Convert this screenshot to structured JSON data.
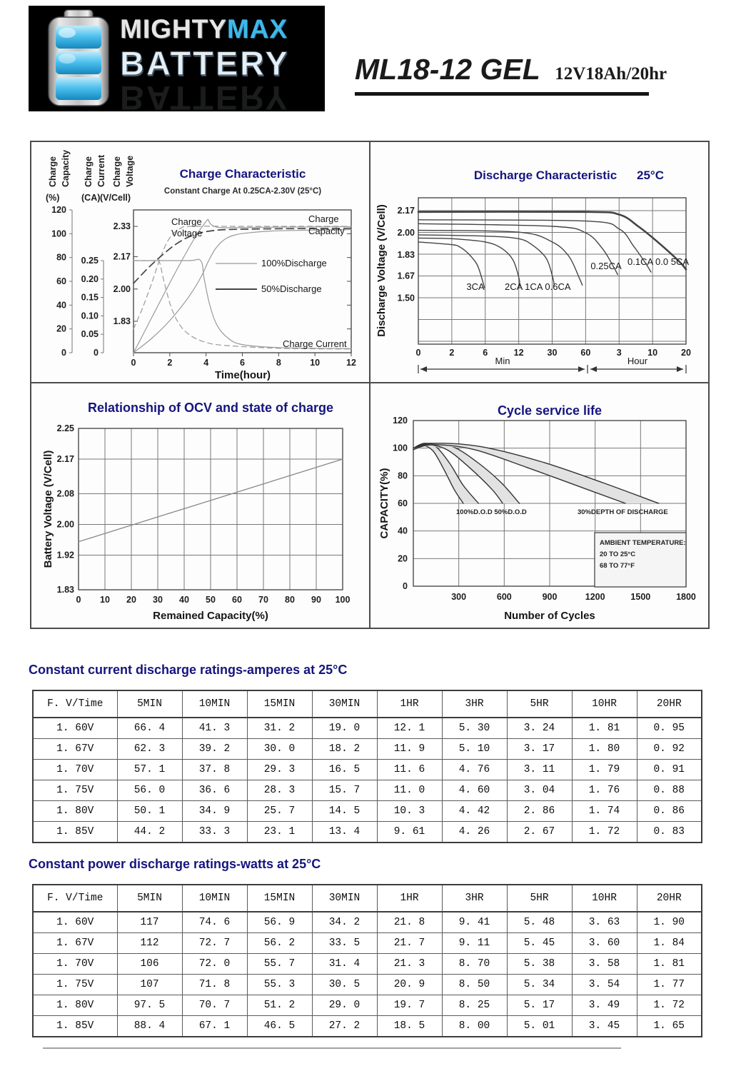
{
  "header": {
    "brand": {
      "part1": "MIGHTY",
      "part2": "MAX",
      "line2": "BATTERY"
    },
    "battery_icon": "battery-icon",
    "model": "ML18-12 GEL",
    "spec": "12V18Ah/20hr"
  },
  "colors": {
    "title_navy": "#15157e",
    "line_dark": "#444444",
    "line_light": "#9a9a9a",
    "grid": "#787878",
    "band_fill": "#e2e2e2",
    "logo_blue": "#41b7e9",
    "logo_bg": "#000000"
  },
  "chart_data": [
    {
      "id": "charge",
      "type": "line",
      "title": "Charge Characteristic",
      "subtitle": "Constant Charge At 0.25CA-2.30V (25°C)",
      "xlabel": "Time(hour)",
      "x_ticks": [
        "0",
        "2",
        "4",
        "6",
        "8",
        "10",
        "12"
      ],
      "xlim": [
        0,
        12
      ],
      "axes": [
        {
          "name": "capacity",
          "label_words": [
            "Charge",
            "Capacity"
          ],
          "unit": "(%)",
          "ticks": [
            "120",
            "100",
            "80",
            "60",
            "40",
            "20",
            "0"
          ],
          "tick_values": [
            120,
            100,
            80,
            60,
            40,
            20,
            0
          ]
        },
        {
          "name": "current",
          "label_words": [
            "Charge",
            "Current"
          ],
          "unit": "(CA)",
          "ticks": [
            "0.25",
            "0.20",
            "0.15",
            "0.10",
            "0.05",
            "0"
          ],
          "tick_values": [
            0.25,
            0.2,
            0.15,
            0.1,
            0.05,
            0
          ]
        },
        {
          "name": "voltage",
          "label_words": [
            "Charge",
            "Voltage"
          ],
          "unit": "(V/Cell)",
          "ticks": [
            "2.33",
            "2.17",
            "2.00",
            "1.83"
          ],
          "tick_values": [
            2.33,
            2.17,
            2.0,
            1.83
          ]
        }
      ],
      "legend": [
        {
          "label": "100%Discharge",
          "style": "light"
        },
        {
          "label": "50%Discharge",
          "style": "dark"
        }
      ],
      "annotations": {
        "voltage": [
          "Charge",
          "Voltage"
        ],
        "capacity": [
          "Charge",
          "Capacity"
        ],
        "current": "Charge Current"
      },
      "series": [
        {
          "name": "charge-voltage-100pct",
          "axis": "voltage",
          "style": "light-dash",
          "points": [
            [
              0,
              1.79
            ],
            [
              0.5,
              1.9
            ],
            [
              1.0,
              2.03
            ],
            [
              1.5,
              2.17
            ],
            [
              2.0,
              2.27
            ],
            [
              2.6,
              2.32
            ],
            [
              3.2,
              2.33
            ],
            [
              6,
              2.33
            ],
            [
              12,
              2.33
            ]
          ]
        },
        {
          "name": "charge-voltage-50pct",
          "axis": "voltage",
          "style": "dark-dash",
          "points": [
            [
              0,
              2.03
            ],
            [
              0.8,
              2.11
            ],
            [
              1.6,
              2.18
            ],
            [
              2.4,
              2.24
            ],
            [
              3.2,
              2.28
            ],
            [
              4.2,
              2.305
            ],
            [
              6,
              2.315
            ],
            [
              12,
              2.32
            ]
          ]
        },
        {
          "name": "charge-capacity-100pct",
          "axis": "capacity",
          "style": "light-solid",
          "points": [
            [
              0,
              0
            ],
            [
              1,
              12
            ],
            [
              2,
              27
            ],
            [
              3,
              46
            ],
            [
              3.7,
              63
            ],
            [
              4.1,
              76
            ],
            [
              4.5,
              87
            ],
            [
              5,
              95
            ],
            [
              5.6,
              99
            ],
            [
              6.5,
              101
            ],
            [
              8,
              102.5
            ],
            [
              12,
              103.5
            ]
          ]
        },
        {
          "name": "charge-capacity-50pct",
          "axis": "capacity",
          "style": "light-solid",
          "points": [
            [
              0,
              0
            ],
            [
              3.7,
              104
            ],
            [
              5,
              105
            ],
            [
              12,
              106
            ]
          ]
        },
        {
          "name": "charge-current-100pct",
          "axis": "current",
          "style": "light-solid",
          "points": [
            [
              0,
              0.25
            ],
            [
              3.0,
              0.25
            ],
            [
              3.7,
              0.25
            ],
            [
              3.9,
              0.2
            ],
            [
              4.2,
              0.13
            ],
            [
              4.6,
              0.075
            ],
            [
              5.2,
              0.04
            ],
            [
              6,
              0.022
            ],
            [
              8,
              0.014
            ],
            [
              12,
              0.011
            ]
          ]
        },
        {
          "name": "charge-current-50pct",
          "axis": "current",
          "style": "light-dash",
          "points": [
            [
              0,
              0.25
            ],
            [
              1.1,
              0.25
            ],
            [
              1.4,
              0.25
            ],
            [
              1.7,
              0.19
            ],
            [
              2.1,
              0.12
            ],
            [
              2.6,
              0.072
            ],
            [
              3.2,
              0.045
            ],
            [
              4,
              0.028
            ],
            [
              5,
              0.02
            ],
            [
              8,
              0.012
            ],
            [
              12,
              0.01
            ]
          ]
        }
      ]
    },
    {
      "id": "discharge",
      "type": "line",
      "title": "Discharge Characteristic",
      "temperature": "25°C",
      "ylabel": "Discharge Voltage (V/Cell)",
      "y_ticks": [
        "2.17",
        "2.00",
        "1.83",
        "1.67",
        "1.50"
      ],
      "y_tick_values": [
        2.17,
        2.0,
        1.83,
        1.67,
        1.5
      ],
      "x_ticks": [
        "0",
        "2",
        "6",
        "12",
        "30",
        "60",
        "3",
        "10",
        "20"
      ],
      "x_tick_minutes": [
        0,
        2,
        6,
        12,
        30,
        60,
        180,
        600,
        1200
      ],
      "x_groups": [
        "Min",
        "Hour"
      ],
      "series": [
        {
          "name": "3CA",
          "points": [
            [
              0,
              1.93
            ],
            [
              2,
              1.91
            ],
            [
              3,
              1.89
            ],
            [
              4,
              1.84
            ],
            [
              5,
              1.76
            ],
            [
              5.6,
              1.65
            ],
            [
              5.9,
              1.58
            ]
          ]
        },
        {
          "name": "2CA",
          "points": [
            [
              0,
              1.96
            ],
            [
              2,
              1.955
            ],
            [
              6,
              1.93
            ],
            [
              9,
              1.88
            ],
            [
              11,
              1.79
            ],
            [
              12.2,
              1.65
            ],
            [
              12.5,
              1.59
            ]
          ]
        },
        {
          "name": "1CA",
          "points": [
            [
              0,
              1.985
            ],
            [
              6,
              1.975
            ],
            [
              12,
              1.955
            ],
            [
              20,
              1.9
            ],
            [
              27,
              1.8
            ],
            [
              31,
              1.64
            ],
            [
              31.5,
              1.59
            ]
          ]
        },
        {
          "name": "0.6CA",
          "points": [
            [
              0,
              2.02
            ],
            [
              12,
              2.005
            ],
            [
              30,
              1.93
            ],
            [
              45,
              1.82
            ],
            [
              54,
              1.66
            ],
            [
              57,
              1.6
            ]
          ]
        },
        {
          "name": "0.25CA",
          "points": [
            [
              0,
              2.07
            ],
            [
              30,
              2.05
            ],
            [
              60,
              2.0
            ],
            [
              120,
              1.88
            ],
            [
              160,
              1.74
            ],
            [
              175,
              1.68
            ]
          ]
        },
        {
          "name": "0.1CA",
          "points": [
            [
              0,
              2.1
            ],
            [
              60,
              2.09
            ],
            [
              180,
              2.03
            ],
            [
              360,
              1.9
            ],
            [
              520,
              1.76
            ],
            [
              580,
              1.7
            ]
          ]
        },
        {
          "name": "0.05CA",
          "points": [
            [
              0,
              2.16
            ],
            [
              60,
              2.16
            ],
            [
              180,
              2.14
            ],
            [
              420,
              2.05
            ],
            [
              720,
              1.92
            ],
            [
              1080,
              1.78
            ],
            [
              1200,
              1.72
            ]
          ],
          "thick": true
        }
      ],
      "curve_labels": [
        {
          "text": "3CA",
          "anchor": "middle",
          "x_hint": 147,
          "y_hint": 207
        },
        {
          "text": "2CA 1CA 0.6CA",
          "anchor": "start",
          "x_hint": 188,
          "y_hint": 207
        },
        {
          "text": "0.25CA",
          "anchor": "middle",
          "x_hint": 330,
          "y_hint": 178
        },
        {
          "text": "0.1CA 0.0 5CA",
          "anchor": "start",
          "x_hint": 360,
          "y_hint": 172
        }
      ]
    },
    {
      "id": "ocv",
      "type": "line",
      "title": "Relationship of OCV and state of charge",
      "ylabel": "Battery Voltage (V/Cell)",
      "xlabel": "Remained Capacity(%)",
      "y_ticks": [
        "2.25",
        "2.17",
        "2.08",
        "2.00",
        "1.92",
        "1.83"
      ],
      "y_tick_values": [
        2.25,
        2.17,
        2.08,
        2.0,
        1.92,
        1.83
      ],
      "x_ticks": [
        "0",
        "10",
        "20",
        "30",
        "40",
        "50",
        "60",
        "70",
        "80",
        "90",
        "100"
      ],
      "x_tick_values": [
        0,
        10,
        20,
        30,
        40,
        50,
        60,
        70,
        80,
        90,
        100
      ],
      "series": [
        {
          "name": "ocv-line",
          "points": [
            [
              0,
              1.955
            ],
            [
              100,
              2.17
            ]
          ]
        }
      ]
    },
    {
      "id": "cycle",
      "type": "area",
      "title": "Cycle service life",
      "ylabel": "CAPACITY(%)",
      "xlabel": "Number of Cycles",
      "y_ticks": [
        "120",
        "100",
        "80",
        "60",
        "40",
        "20",
        "0"
      ],
      "y_tick_values": [
        120,
        100,
        80,
        60,
        40,
        20,
        0
      ],
      "x_ticks": [
        "300",
        "600",
        "900",
        "1200",
        "1500",
        "1800"
      ],
      "x_tick_values": [
        300,
        600,
        900,
        1200,
        1500,
        1800
      ],
      "xlim": [
        0,
        1800
      ],
      "dod_labels": [
        {
          "text": "100%D.O.D 50%D.O.D",
          "x_hint": 120,
          "y_hint": 183
        },
        {
          "text": "30%DEPTH OF DISCHARGE",
          "x_hint": 290,
          "y_hint": 183
        }
      ],
      "ambient_box": [
        "AMBIENT TEMPERATURE:",
        "20 TO 25°C",
        "68 TO 77°F"
      ],
      "bands": [
        {
          "name": "100%-dod",
          "upper": [
            [
              0,
              100
            ],
            [
              70,
              103.5
            ],
            [
              150,
              101
            ],
            [
              240,
              89
            ],
            [
              330,
              73
            ],
            [
              430,
              60
            ]
          ],
          "lower": [
            [
              0,
              99
            ],
            [
              60,
              102
            ],
            [
              130,
              98
            ],
            [
              200,
              85
            ],
            [
              270,
              70
            ],
            [
              330,
              60
            ]
          ]
        },
        {
          "name": "50%-dod",
          "upper": [
            [
              0,
              100
            ],
            [
              100,
              103.5
            ],
            [
              260,
              101
            ],
            [
              420,
              90
            ],
            [
              580,
              75
            ],
            [
              700,
              60
            ]
          ],
          "lower": [
            [
              0,
              99
            ],
            [
              90,
              102.5
            ],
            [
              220,
              99
            ],
            [
              370,
              86
            ],
            [
              520,
              70
            ],
            [
              590,
              60
            ]
          ]
        },
        {
          "name": "30%-dod",
          "upper": [
            [
              0,
              100
            ],
            [
              150,
              103.5
            ],
            [
              450,
              101
            ],
            [
              850,
              90
            ],
            [
              1250,
              75
            ],
            [
              1620,
              60
            ]
          ],
          "lower": [
            [
              0,
              99
            ],
            [
              130,
              102.5
            ],
            [
              400,
              99
            ],
            [
              750,
              86
            ],
            [
              1150,
              70
            ],
            [
              1400,
              60
            ]
          ]
        }
      ]
    }
  ],
  "tables": [
    {
      "title": "Constant current discharge ratings-amperes at 25°C",
      "headers": [
        "F. V/Time",
        "5MIN",
        "10MIN",
        "15MIN",
        "30MIN",
        "1HR",
        "3HR",
        "5HR",
        "10HR",
        "20HR"
      ],
      "rows": [
        [
          "1. 60V",
          "66. 4",
          "41. 3",
          "31. 2",
          "19. 0",
          "12. 1",
          "5. 30",
          "3. 24",
          "1. 81",
          "0. 95"
        ],
        [
          "1. 67V",
          "62. 3",
          "39. 2",
          "30. 0",
          "18. 2",
          "11. 9",
          "5. 10",
          "3. 17",
          "1. 80",
          "0. 92"
        ],
        [
          "1. 70V",
          "57. 1",
          "37. 8",
          "29. 3",
          "16. 5",
          "11. 6",
          "4. 76",
          "3. 11",
          "1. 79",
          "0. 91"
        ],
        [
          "1. 75V",
          "56. 0",
          "36. 6",
          "28. 3",
          "15. 7",
          "11. 0",
          "4. 60",
          "3. 04",
          "1. 76",
          "0. 88"
        ],
        [
          "1. 80V",
          "50. 1",
          "34. 9",
          "25. 7",
          "14. 5",
          "10. 3",
          "4. 42",
          "2. 86",
          "1. 74",
          "0. 86"
        ],
        [
          "1. 85V",
          "44. 2",
          "33. 3",
          "23. 1",
          "13. 4",
          "9. 61",
          "4. 26",
          "2. 67",
          "1. 72",
          "0. 83"
        ]
      ]
    },
    {
      "title": "Constant power discharge ratings-watts at 25°C",
      "headers": [
        "F. V/Time",
        "5MIN",
        "10MIN",
        "15MIN",
        "30MIN",
        "1HR",
        "3HR",
        "5HR",
        "10HR",
        "20HR"
      ],
      "rows": [
        [
          "1. 60V",
          "117",
          "74. 6",
          "56. 9",
          "34. 2",
          "21. 8",
          "9. 41",
          "5. 48",
          "3. 63",
          "1. 90"
        ],
        [
          "1. 67V",
          "112",
          "72. 7",
          "56. 2",
          "33. 5",
          "21. 7",
          "9. 11",
          "5. 45",
          "3. 60",
          "1. 84"
        ],
        [
          "1. 70V",
          "106",
          "72. 0",
          "55. 7",
          "31. 4",
          "21. 3",
          "8. 70",
          "5. 38",
          "3. 58",
          "1. 81"
        ],
        [
          "1. 75V",
          "107",
          "71. 8",
          "55. 3",
          "30. 5",
          "20. 9",
          "8. 50",
          "5. 34",
          "3. 54",
          "1. 77"
        ],
        [
          "1. 80V",
          "97. 5",
          "70. 7",
          "51. 2",
          "29. 0",
          "19. 7",
          "8. 25",
          "5. 17",
          "3. 49",
          "1. 72"
        ],
        [
          "1. 85V",
          "88. 4",
          "67. 1",
          "46. 5",
          "27. 2",
          "18. 5",
          "8. 00",
          "5. 01",
          "3. 45",
          "1. 65"
        ]
      ]
    }
  ]
}
